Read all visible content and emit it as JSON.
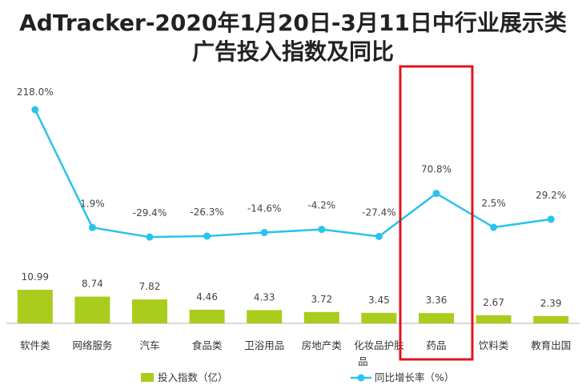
{
  "chart_data": {
    "type": "bar+line",
    "title_line1": "AdTracker-2020年1月20日-3月11日中行业展示类",
    "title_line2": "广告投入指数及同比",
    "categories": [
      "软件类",
      "网络服务",
      "汽车",
      "食品类",
      "卫浴用品",
      "房地产类",
      "化妆品护肤品",
      "药品",
      "饮料类",
      "教育出国"
    ],
    "series": [
      {
        "name": "投入指数（亿）",
        "type": "bar",
        "color": "#aacc1d",
        "values": [
          10.99,
          8.74,
          7.82,
          4.46,
          4.33,
          3.72,
          3.45,
          3.36,
          2.67,
          2.39
        ],
        "labels": [
          "10.99",
          "8.74",
          "7.82",
          "4.46",
          "4.33",
          "3.72",
          "3.45",
          "3.36",
          "2.67",
          "2.39"
        ]
      },
      {
        "name": "同比增长率（%）",
        "type": "line",
        "color": "#29c3ec",
        "values": [
          218.0,
          1.9,
          -29.4,
          -26.3,
          -14.6,
          -4.2,
          -27.4,
          70.8,
          2.5,
          29.2
        ],
        "labels": [
          "218.0%",
          "1.9%",
          "-29.4%",
          "-26.3%",
          "-14.6%",
          "-4.2%",
          "-27.4%",
          "70.8%",
          "2.5%",
          "29.2%"
        ]
      }
    ],
    "highlight": {
      "category": "药品",
      "color": "#e0151b"
    },
    "legend_position": "bottom"
  }
}
